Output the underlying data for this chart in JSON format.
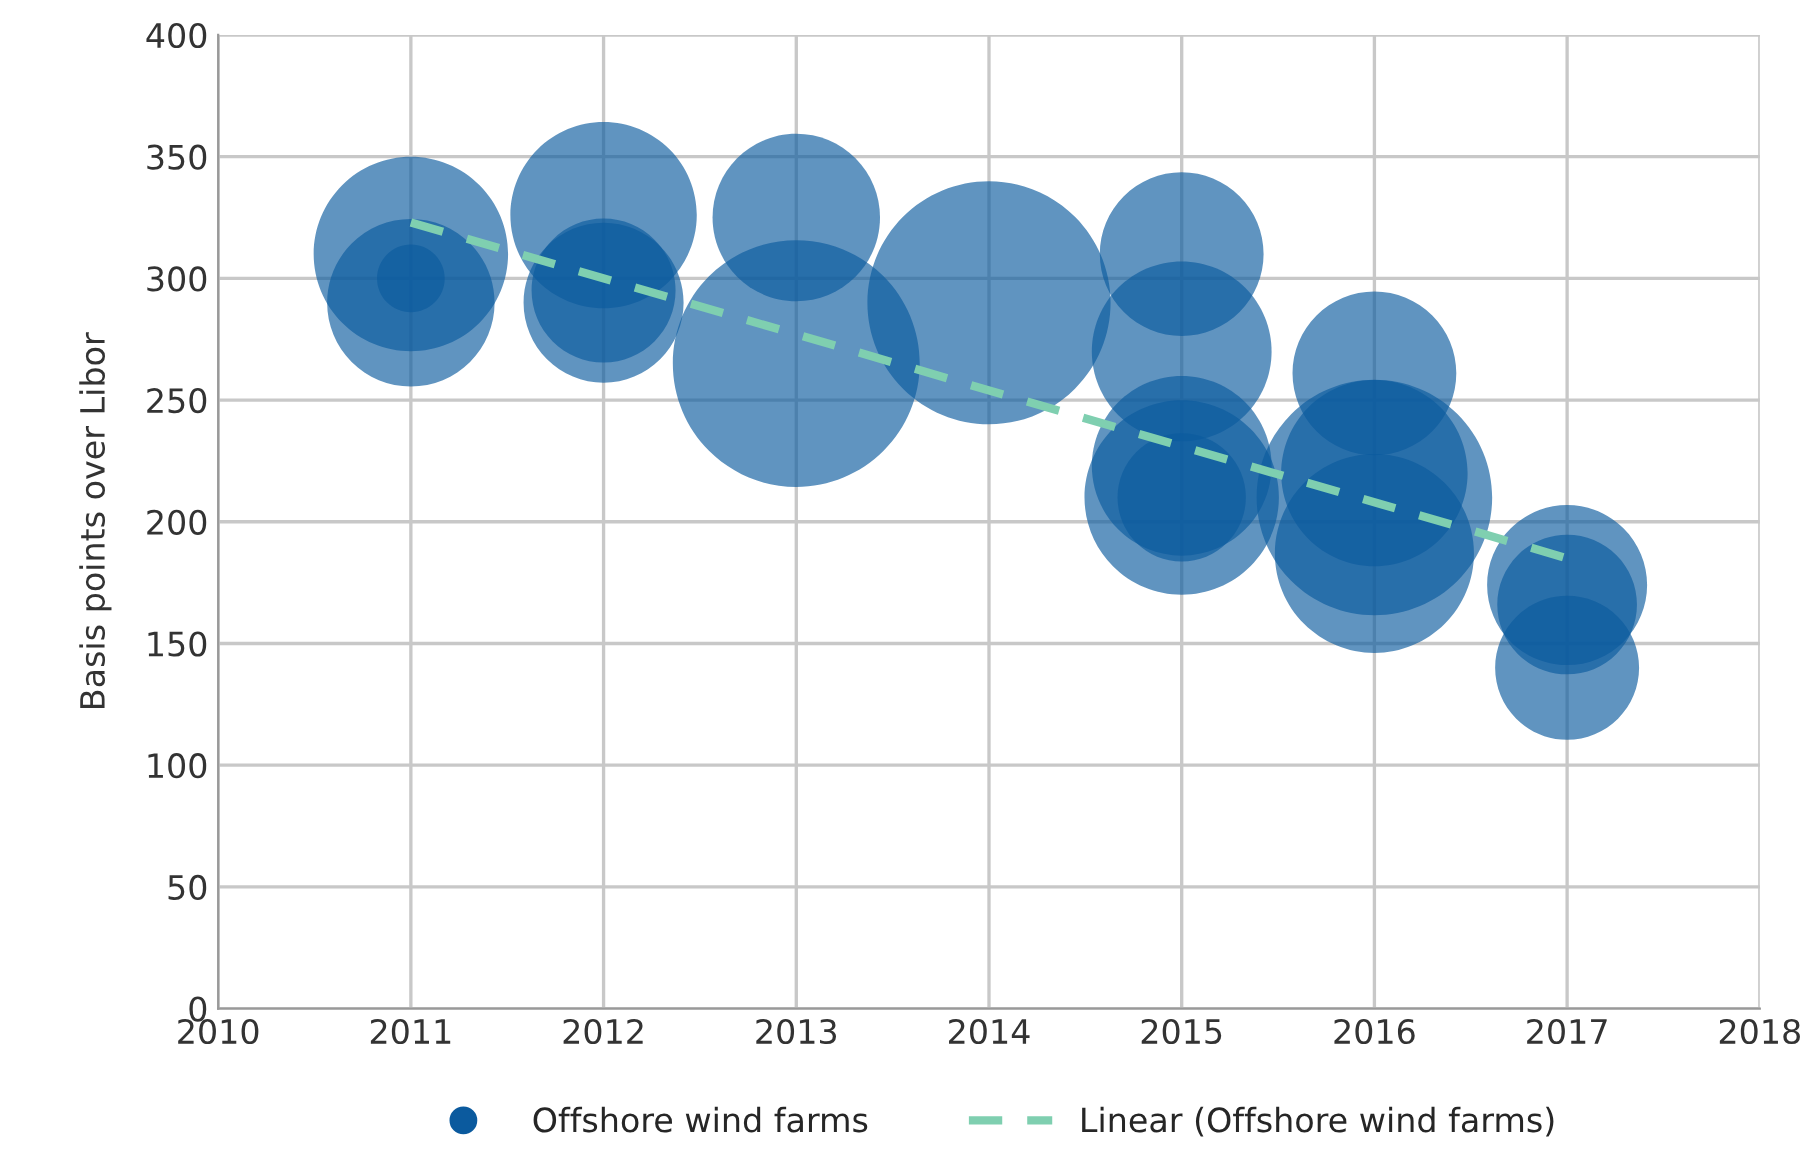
{
  "chart_data": {
    "type": "bubble",
    "ylabel": "Basis points over Libor",
    "xlim": [
      2010,
      2018
    ],
    "xticks": [
      2010,
      2011,
      2012,
      2013,
      2014,
      2015,
      2016,
      2017,
      2018
    ],
    "ylim": [
      0,
      400
    ],
    "yticks": [
      0,
      50,
      100,
      150,
      200,
      250,
      300,
      350,
      400
    ],
    "grid": true,
    "legend": "bottom",
    "series": [
      {
        "name": "Offshore wind farms",
        "color": "#0b5a9e",
        "marker": "circle",
        "x": [
          2011,
          2011,
          2011,
          2012,
          2012,
          2012,
          2013,
          2013,
          2014,
          2015,
          2015,
          2015,
          2015,
          2015,
          2016,
          2016,
          2016,
          2016,
          2017,
          2017,
          2017
        ],
        "values": [
          310,
          290,
          300,
          326,
          290,
          295,
          325,
          265,
          290,
          310,
          270,
          223,
          210,
          210,
          261,
          210,
          220,
          187,
          174,
          166,
          140
        ],
        "sizes": [
          0.62,
          0.46,
          0.075,
          0.57,
          0.42,
          0.34,
          0.46,
          1,
          0.97,
          0.44,
          0.53,
          0.53,
          0.62,
          0.27,
          0.44,
          0.91,
          0.57,
          0.65,
          0.42,
          0.32,
          0.34
        ]
      },
      {
        "name": "Linear (Offshore wind farms)",
        "type": "line",
        "color": "#7fcfb0",
        "line_style": "dashed",
        "marker": "none",
        "x": [
          2011,
          2017
        ],
        "values": [
          323,
          185
        ]
      }
    ]
  }
}
